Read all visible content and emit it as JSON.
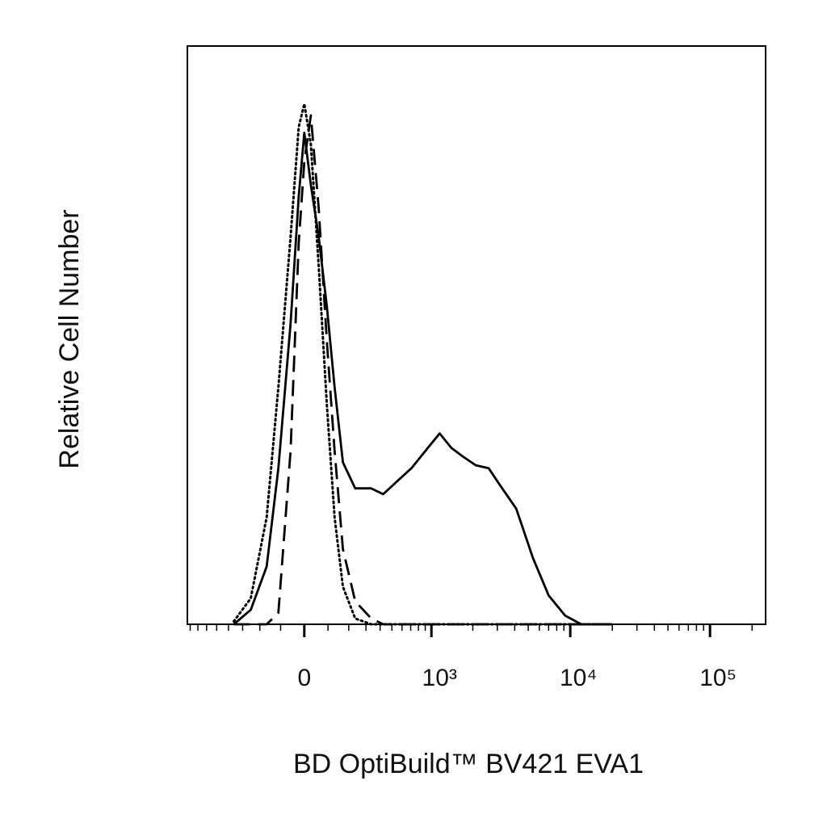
{
  "chart_data": {
    "type": "line",
    "xlabel": "BD OptiBuild™ BV421 EVA1",
    "ylabel": "Relative Cell Number",
    "xscale": "asinh",
    "xlim": [
      -840,
      250000
    ],
    "ylim": [
      0,
      100
    ],
    "xticks": [
      0,
      {
        "value": 1000,
        "label": "10³"
      },
      {
        "value": 10000,
        "label": "10⁴"
      },
      {
        "value": 100000,
        "label": "10⁵"
      }
    ],
    "xminorticks": [
      -800,
      -700,
      -600,
      -500,
      -400,
      -300,
      -200,
      -100,
      100,
      200,
      300,
      400,
      500,
      600,
      700,
      800,
      900,
      2000,
      3000,
      4000,
      5000,
      6000,
      7000,
      8000,
      9000,
      20000,
      30000,
      40000,
      50000,
      60000,
      70000,
      80000,
      90000,
      200000
    ],
    "x": [
      -360,
      -250,
      -165,
      -110,
      -57,
      -23,
      0,
      27,
      60,
      95,
      130,
      170,
      235,
      335,
      425,
      535,
      710,
      940,
      1150,
      1400,
      1700,
      2100,
      2600,
      3150,
      4100,
      5400,
      7000,
      9200,
      12000,
      20000
    ],
    "series": [
      {
        "color": "#000000",
        "style": "solid",
        "values": [
          0,
          2.5,
          10,
          27,
          52,
          74,
          85,
          76,
          67,
          55,
          41,
          28,
          23.5,
          23.5,
          22.5,
          24.5,
          27,
          30.5,
          33,
          30.5,
          29,
          27.5,
          27,
          24,
          20,
          11.5,
          5,
          1.5,
          0,
          0
        ]
      },
      {
        "color": "#000000",
        "style": "dashed",
        "values": [
          0,
          0,
          0,
          2,
          30,
          66,
          80,
          88,
          72,
          49,
          30,
          13,
          4,
          1,
          0,
          0,
          0,
          0,
          0,
          0,
          0,
          0,
          0,
          0,
          0,
          0,
          0,
          0,
          0,
          0
        ]
      },
      {
        "color": "#000000",
        "style": "dotted",
        "values": [
          0.5,
          4.5,
          18.5,
          41,
          67,
          86,
          90,
          83,
          62,
          38,
          18.5,
          6.5,
          1,
          0,
          0,
          0,
          0,
          0,
          0,
          0,
          0,
          0,
          0,
          0,
          0,
          0,
          0,
          0,
          0,
          0
        ]
      }
    ]
  }
}
